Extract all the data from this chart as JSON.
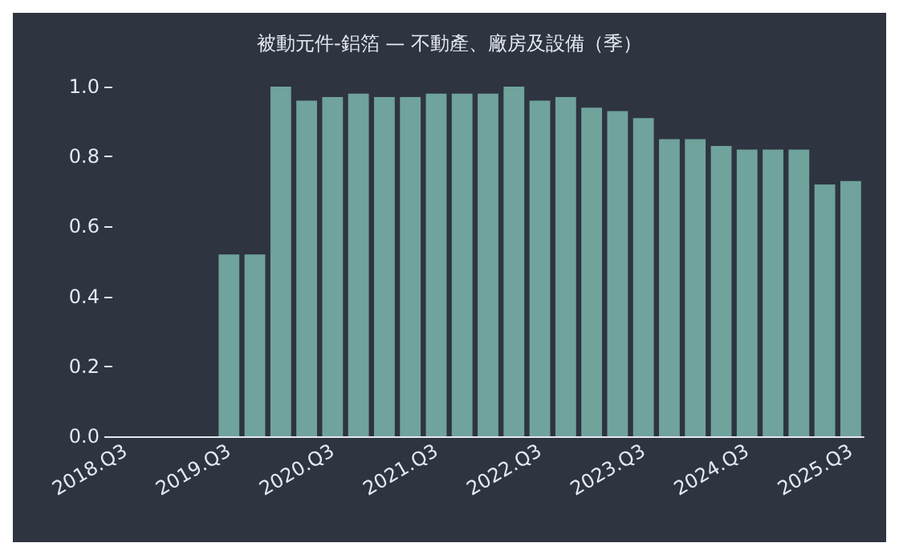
{
  "chart_data": {
    "type": "bar",
    "title": "被動元件-鋁箔 — 不動產、廠房及設備（季）",
    "categories": [
      "2018.Q3",
      null,
      null,
      null,
      "2019.Q3",
      null,
      null,
      null,
      "2020.Q3",
      null,
      null,
      null,
      "2021.Q3",
      null,
      null,
      null,
      "2022.Q3",
      null,
      null,
      null,
      "2023.Q3",
      null,
      null,
      null,
      "2024.Q3",
      null,
      null,
      null,
      "2025.Q3"
    ],
    "values": [
      null,
      null,
      null,
      null,
      0.52,
      0.52,
      1.0,
      0.96,
      0.97,
      0.98,
      0.97,
      0.97,
      0.98,
      0.98,
      0.98,
      1.0,
      0.96,
      0.97,
      0.94,
      0.93,
      0.91,
      0.85,
      0.85,
      0.83,
      0.82,
      0.82,
      0.82,
      0.72,
      0.73
    ],
    "color": "#6fa39b",
    "ylim": [
      0,
      1
    ],
    "yticks": [
      {
        "value": 0,
        "label": "0.0"
      },
      {
        "value": 0.2,
        "label": "0.2"
      },
      {
        "value": 0.4,
        "label": "0.4"
      },
      {
        "value": 0.6,
        "label": "0.6"
      },
      {
        "value": 0.8,
        "label": "0.8"
      },
      {
        "value": 1,
        "label": "1.0"
      }
    ],
    "grid": false
  }
}
